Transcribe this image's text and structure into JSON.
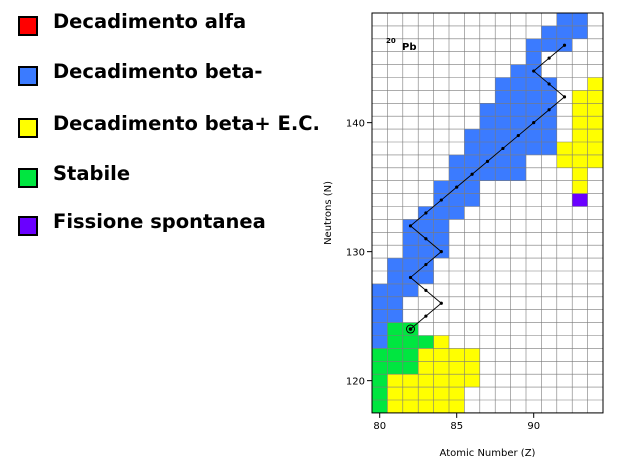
{
  "legend": {
    "items": [
      {
        "key": "alpha",
        "label": "Decadimento alfa",
        "color": "#ff0000"
      },
      {
        "key": "beta_minus",
        "label": "Decadimento beta-",
        "color": "#3b7bff"
      },
      {
        "key": "beta_plus",
        "label": "Decadimento beta+ E.C.",
        "color": "#ffff00"
      },
      {
        "key": "stable",
        "label": "Stabile",
        "color": "#00e640"
      },
      {
        "key": "fission",
        "label": "Fissione spontanea",
        "color": "#6a00ff"
      }
    ]
  },
  "chart_data": {
    "type": "heatmap",
    "xlabel": "Atomic Number (Z)",
    "ylabel": "Neutrons (N)",
    "xlim": [
      80,
      94
    ],
    "ylim": [
      120,
      148
    ],
    "xticks": [
      80,
      85,
      90
    ],
    "yticks": [
      120,
      130,
      140
    ],
    "annotation": {
      "mass": "20",
      "symbol": "Pb"
    },
    "colors": {
      "A": "#ff0000",
      "B": "#3b7bff",
      "P": "#ffff00",
      "S": "#00e640",
      "F": "#6a00ff"
    },
    "grid_origin": {
      "z": 80,
      "n": 148
    },
    "grid": [
      "............BBR",
      "...........BBBR",
      "..........BBBRR",
      "..........BRRRR",
      ".........BBRRRR",
      "........BBBBRRP",
      "........BBBBRPP",
      ".......BBBBBRPP",
      ".......BBBBBRPP",
      "......BBBBBBRPP",
      "......BBBBBBPPP",
      ".....BBBBBRRPPP",
      ".....BBBBBRRRP.",
      "....BBBRRRRRRP.",
      "....BBBRRRRRRF.",
      "...BBBRRRRRRRR.",
      "..BBBRRRRRRRR..",
      "..BBBRRRRRRRR..",
      "..BBBRRRRRRRR..",
      ".BBBRRRRRRRRRR.",
      ".BBBRRRRRRRRRR.",
      "BBBRRRR.RRRR...",
      "BBRRRRRRRRRR...",
      "BBRRRRRRRRRR...",
      "BSSRRRRRRRRR...",
      "BSSSPRRRRRRR...",
      "SSSPPPPRRRRR...",
      "SSSPPPPRRRR....",
      "SPPPPPPRRRR....",
      "SPPPPPRRRRR....",
      "SPPPPPRRR......"
    ],
    "decay_chain": [
      [
        92,
        146
      ],
      [
        91,
        145
      ],
      [
        90,
        144
      ],
      [
        91,
        143
      ],
      [
        92,
        142
      ],
      [
        91,
        141
      ],
      [
        90,
        140
      ],
      [
        89,
        139
      ],
      [
        88,
        138
      ],
      [
        87,
        137
      ],
      [
        86,
        136
      ],
      [
        85,
        135
      ],
      [
        84,
        134
      ],
      [
        83,
        133
      ],
      [
        82,
        132
      ],
      [
        83,
        131
      ],
      [
        84,
        130
      ],
      [
        83,
        129
      ],
      [
        82,
        128
      ],
      [
        83,
        127
      ],
      [
        84,
        126
      ],
      [
        83,
        125
      ],
      [
        82,
        124
      ]
    ],
    "end_point": [
      82,
      124
    ]
  }
}
